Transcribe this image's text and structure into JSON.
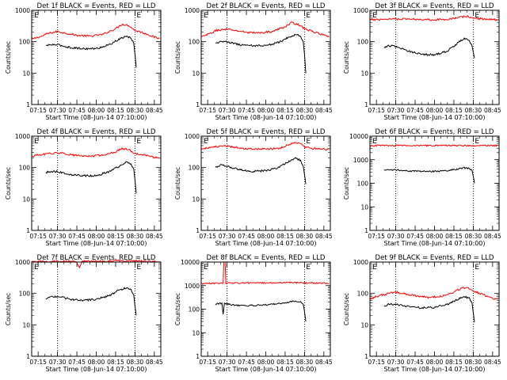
{
  "figure": {
    "background": "#ffffff",
    "events_color": "#000000",
    "lld_color": "#ff0000",
    "time_ticks": [
      "07:15",
      "07:30",
      "07:45",
      "08:00",
      "08:15",
      "08:30",
      "08:45"
    ],
    "time_start": "07:10",
    "time_end": "08:50"
  },
  "chart_data": [
    {
      "type": "line",
      "title": "Det 1f BLACK = Events, RED = LLD",
      "xlabel": "Start Time (08-Jun-14 07:10:00)",
      "ylabel": "Counts/sec",
      "yscale": "log",
      "ylim": [
        1,
        1000
      ],
      "ytick_labels": [
        "1",
        "10",
        "100",
        "1000"
      ],
      "markers": [
        "07:30",
        "08:30"
      ],
      "corner_labels": [
        "E",
        "E"
      ],
      "series": [
        {
          "name": "RED = LLD",
          "color": "#ff0000",
          "x": [
            "07:10",
            "07:18",
            "07:22",
            "07:30",
            "07:45",
            "07:55",
            "08:05",
            "08:15",
            "08:20",
            "08:25",
            "08:30",
            "08:35",
            "08:40",
            "08:45",
            "08:49"
          ],
          "values": [
            120,
            150,
            180,
            210,
            160,
            150,
            170,
            260,
            360,
            330,
            230,
            200,
            170,
            140,
            125
          ]
        },
        {
          "name": "BLACK = Events",
          "color": "#000000",
          "x": [
            "07:21",
            "07:25",
            "07:30",
            "07:40",
            "07:50",
            "08:00",
            "08:10",
            "08:18",
            "08:23",
            "08:27",
            "08:29",
            "08:30",
            "08:31"
          ],
          "values": [
            75,
            80,
            80,
            65,
            60,
            60,
            80,
            120,
            150,
            130,
            90,
            40,
            15
          ]
        }
      ]
    },
    {
      "type": "line",
      "title": "Det 2f BLACK = Events, RED = LLD",
      "xlabel": "Start Time (08-Jun-14 07:10:00)",
      "ylabel": "Counts/sec",
      "yscale": "log",
      "ylim": [
        1,
        1000
      ],
      "ytick_labels": [
        "1",
        "10",
        "100",
        "1000"
      ],
      "markers": [
        "07:30",
        "08:30"
      ],
      "corner_labels": [
        "E",
        "E"
      ],
      "series": [
        {
          "name": "RED = LLD",
          "color": "#ff0000",
          "x": [
            "07:10",
            "07:18",
            "07:22",
            "07:30",
            "07:45",
            "07:55",
            "08:05",
            "08:15",
            "08:20",
            "08:25",
            "08:30",
            "08:35",
            "08:40",
            "08:45",
            "08:49"
          ],
          "values": [
            140,
            190,
            230,
            250,
            200,
            190,
            210,
            300,
            400,
            360,
            260,
            220,
            190,
            160,
            140
          ]
        },
        {
          "name": "BLACK = Events",
          "color": "#000000",
          "x": [
            "07:21",
            "07:25",
            "07:30",
            "07:40",
            "07:50",
            "08:00",
            "08:10",
            "08:18",
            "08:23",
            "08:27",
            "08:29",
            "08:30",
            "08:31"
          ],
          "values": [
            90,
            100,
            100,
            80,
            75,
            75,
            95,
            140,
            170,
            150,
            100,
            40,
            10
          ]
        }
      ]
    },
    {
      "type": "line",
      "title": "Det 3f BLACK = Events, RED = LLD",
      "xlabel": "Start Time (08-Jun-14 07:10:00)",
      "ylabel": "Counts/sec",
      "yscale": "log",
      "ylim": [
        1,
        1000
      ],
      "ytick_labels": [
        "1",
        "10",
        "100",
        "1000"
      ],
      "markers": [
        "07:30",
        "08:30"
      ],
      "corner_labels": [
        "E",
        "E"
      ],
      "series": [
        {
          "name": "RED = LLD",
          "color": "#ff0000",
          "x": [
            "07:10",
            "07:20",
            "07:30",
            "07:45",
            "08:00",
            "08:10",
            "08:20",
            "08:25",
            "08:30",
            "08:40",
            "08:49"
          ],
          "values": [
            500,
            520,
            540,
            520,
            500,
            520,
            600,
            650,
            560,
            520,
            500
          ]
        },
        {
          "name": "BLACK = Events",
          "color": "#000000",
          "x": [
            "07:21",
            "07:25",
            "07:30",
            "07:40",
            "07:50",
            "08:00",
            "08:10",
            "08:18",
            "08:23",
            "08:27",
            "08:29",
            "08:31"
          ],
          "values": [
            65,
            75,
            70,
            50,
            40,
            38,
            50,
            90,
            130,
            110,
            70,
            30
          ]
        }
      ]
    },
    {
      "type": "line",
      "title": "Det 4f BLACK = Events, RED = LLD",
      "xlabel": "Start Time (08-Jun-14 07:10:00)",
      "ylabel": "Counts/sec",
      "yscale": "log",
      "ylim": [
        1,
        1000
      ],
      "ytick_labels": [
        "1",
        "10",
        "100",
        "1000"
      ],
      "markers": [
        "07:30",
        "08:30"
      ],
      "corner_labels": [
        "E",
        "E"
      ],
      "series": [
        {
          "name": "RED = LLD",
          "color": "#ff0000",
          "x": [
            "07:10",
            "07:18",
            "07:22",
            "07:30",
            "07:45",
            "07:55",
            "08:05",
            "08:15",
            "08:20",
            "08:25",
            "08:30",
            "08:35",
            "08:40",
            "08:45",
            "08:49"
          ],
          "values": [
            230,
            260,
            270,
            300,
            240,
            230,
            250,
            320,
            400,
            380,
            280,
            260,
            240,
            210,
            200
          ]
        },
        {
          "name": "BLACK = Events",
          "color": "#000000",
          "x": [
            "07:21",
            "07:25",
            "07:30",
            "07:40",
            "07:50",
            "08:00",
            "08:10",
            "08:18",
            "08:23",
            "08:27",
            "08:29",
            "08:30",
            "08:31"
          ],
          "values": [
            70,
            75,
            75,
            60,
            55,
            55,
            75,
            110,
            150,
            130,
            90,
            40,
            15
          ]
        }
      ]
    },
    {
      "type": "line",
      "title": "Det 5f BLACK = Events, RED = LLD",
      "xlabel": "Start Time (08-Jun-14 07:10:00)",
      "ylabel": "Counts/sec",
      "yscale": "log",
      "ylim": [
        1,
        1000
      ],
      "ytick_labels": [
        "1",
        "10",
        "100",
        "1000"
      ],
      "markers": [
        "07:30",
        "08:30"
      ],
      "corner_labels": [
        "E",
        "E"
      ],
      "series": [
        {
          "name": "RED = LLD",
          "color": "#ff0000",
          "x": [
            "07:10",
            "07:20",
            "07:30",
            "07:45",
            "08:00",
            "08:10",
            "08:18",
            "08:23",
            "08:27",
            "08:31",
            "08:40",
            "08:49"
          ],
          "values": [
            400,
            450,
            480,
            400,
            390,
            400,
            550,
            650,
            550,
            430,
            400,
            380
          ]
        },
        {
          "name": "BLACK = Events",
          "color": "#000000",
          "x": [
            "07:21",
            "07:25",
            "07:30",
            "07:40",
            "07:50",
            "08:00",
            "08:10",
            "08:18",
            "08:23",
            "08:27",
            "08:29",
            "08:30",
            "08:31"
          ],
          "values": [
            100,
            120,
            110,
            85,
            75,
            80,
            100,
            160,
            200,
            170,
            110,
            60,
            30
          ]
        }
      ]
    },
    {
      "type": "line",
      "title": "Det 6f BLACK = Events, RED = LLD",
      "xlabel": "Start Time (08-Jun-14 07:10:00)",
      "ylabel": "Counts/sec",
      "yscale": "log",
      "ylim": [
        1,
        10000
      ],
      "ytick_labels": [
        "1",
        "10",
        "100",
        "1000",
        "10000"
      ],
      "markers": [
        "07:30",
        "08:30"
      ],
      "corner_labels": [
        "E",
        "E"
      ],
      "series": [
        {
          "name": "RED = LLD",
          "color": "#ff0000",
          "x": [
            "07:10",
            "08:49"
          ],
          "values": [
            4000,
            4000
          ]
        },
        {
          "name": "BLACK = Events",
          "color": "#000000",
          "x": [
            "07:21",
            "07:25",
            "07:30",
            "07:40",
            "07:50",
            "08:00",
            "08:10",
            "08:18",
            "08:23",
            "08:27",
            "08:29",
            "08:30",
            "08:31"
          ],
          "values": [
            350,
            380,
            370,
            330,
            320,
            320,
            350,
            400,
            450,
            420,
            350,
            200,
            100
          ]
        }
      ]
    },
    {
      "type": "line",
      "title": "Det 7f BLACK = Events, RED = LLD",
      "xlabel": "Start Time (08-Jun-14 07:10:00)",
      "ylabel": "Counts/sec",
      "yscale": "log",
      "ylim": [
        1,
        1000
      ],
      "ytick_labels": [
        "1",
        "10",
        "100",
        "1000"
      ],
      "markers": [
        "07:30",
        "08:30"
      ],
      "corner_labels": [
        "E",
        "E"
      ],
      "series": [
        {
          "name": "RED = LLD",
          "color": "#ff0000",
          "x": [
            "07:10",
            "07:20",
            "07:30",
            "07:45",
            "07:47",
            "07:49",
            "08:00",
            "08:15",
            "08:30",
            "08:40",
            "08:49"
          ],
          "values": [
            1000,
            1050,
            1050,
            1050,
            650,
            1050,
            1050,
            1100,
            1100,
            1050,
            1050
          ]
        },
        {
          "name": "BLACK = Events",
          "color": "#000000",
          "x": [
            "07:21",
            "07:25",
            "07:30",
            "07:40",
            "07:50",
            "08:00",
            "08:10",
            "08:18",
            "08:23",
            "08:27",
            "08:29",
            "08:30",
            "08:31"
          ],
          "values": [
            65,
            80,
            80,
            65,
            60,
            65,
            85,
            130,
            150,
            130,
            90,
            40,
            20
          ]
        }
      ]
    },
    {
      "type": "line",
      "title": "Det 8f BLACK = Events, RED = LLD",
      "xlabel": "Start Time (08-Jun-14 07:10:00)",
      "ylabel": "Counts/sec",
      "yscale": "log",
      "ylim": [
        1,
        10000
      ],
      "ytick_labels": [
        "1",
        "10",
        "100",
        "1000",
        "10000"
      ],
      "markers": [
        "07:30",
        "08:30"
      ],
      "corner_labels": [
        "E",
        "E"
      ],
      "series": [
        {
          "name": "RED = LLD",
          "color": "#ff0000",
          "x": [
            "07:10",
            "07:20",
            "07:27",
            "07:27.5",
            "07:28.5",
            "07:29",
            "07:40",
            "08:00",
            "08:20",
            "08:35",
            "08:49"
          ],
          "values": [
            1200,
            1250,
            1250,
            10000,
            10000,
            1300,
            1300,
            1300,
            1350,
            1300,
            1250
          ]
        },
        {
          "name": "BLACK = Events",
          "color": "#000000",
          "x": [
            "07:21",
            "07:26",
            "07:27",
            "07:28",
            "07:29",
            "07:35",
            "07:45",
            "08:00",
            "08:10",
            "08:18",
            "08:23",
            "08:27",
            "08:29",
            "08:30",
            "08:31"
          ],
          "values": [
            160,
            180,
            60,
            180,
            170,
            150,
            140,
            150,
            170,
            200,
            220,
            200,
            160,
            80,
            30
          ]
        }
      ]
    },
    {
      "type": "line",
      "title": "Det 9f BLACK = Events, RED = LLD",
      "xlabel": "Start Time (08-Jun-14 07:10:00)",
      "ylabel": "Counts/sec",
      "yscale": "log",
      "ylim": [
        1,
        1000
      ],
      "ytick_labels": [
        "1",
        "10",
        "100",
        "1000"
      ],
      "markers": [
        "07:30",
        "08:30"
      ],
      "corner_labels": [
        "E",
        "E"
      ],
      "series": [
        {
          "name": "RED = LLD",
          "color": "#ff0000",
          "x": [
            "07:10",
            "07:15",
            "07:22",
            "07:30",
            "07:45",
            "07:55",
            "08:05",
            "08:15",
            "08:20",
            "08:25",
            "08:30",
            "08:35",
            "08:40",
            "08:45",
            "08:49"
          ],
          "values": [
            65,
            80,
            95,
            110,
            85,
            75,
            80,
            110,
            140,
            160,
            120,
            100,
            85,
            70,
            65
          ]
        },
        {
          "name": "BLACK = Events",
          "color": "#000000",
          "x": [
            "07:21",
            "07:25",
            "07:30",
            "07:40",
            "07:50",
            "08:00",
            "08:10",
            "08:18",
            "08:23",
            "08:27",
            "08:29",
            "08:30",
            "08:31"
          ],
          "values": [
            40,
            45,
            45,
            38,
            35,
            36,
            45,
            65,
            80,
            70,
            50,
            25,
            12
          ]
        }
      ]
    }
  ]
}
